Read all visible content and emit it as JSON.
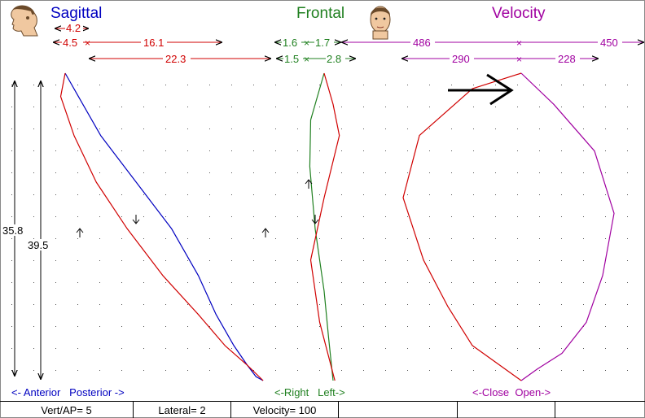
{
  "panels": {
    "sagittal": {
      "title": "Sagittal",
      "color": "#0000c0",
      "direction_label": "<- Anterior   Posterior ->"
    },
    "frontal": {
      "title": "Frontal",
      "color": "#208020",
      "direction_label": "<-Right   Left->"
    },
    "velocity": {
      "title": "Velocity",
      "color": "#a000a0",
      "direction_label": "<-Close  Open->"
    }
  },
  "colors": {
    "red": "#d00000",
    "blue": "#0000c0",
    "green": "#208020",
    "purple": "#a000a0",
    "black": "#000000"
  },
  "measurements": {
    "sagittal_top": "4.2",
    "sagittal_row1_a": "4.5",
    "sagittal_row1_b": "16.1",
    "sagittal_row2": "22.3",
    "frontal_row1_a": "1.6",
    "frontal_row1_b": "1.7",
    "frontal_row2_a": "1.5",
    "frontal_row2_b": "2.8",
    "velocity_row1_a": "486",
    "velocity_row1_b": "450",
    "velocity_row2_a": "290",
    "velocity_row2_b": "228",
    "vertical_a": "35.8",
    "vertical_b": "39.5"
  },
  "status": {
    "vert_ap": "Vert/AP= 5",
    "lateral": "Lateral= 2",
    "velocity": "Velocity= 100",
    "empty1": "",
    "empty2": "",
    "empty3": ""
  },
  "icons": {
    "sagittal": "head-profile-icon",
    "frontal": "face-front-icon",
    "marker": "arrow-right-icon"
  },
  "chart_data": [
    {
      "type": "line",
      "title": "Sagittal",
      "series": [
        {
          "color": "#0000c0",
          "x": [
            0,
            1.5,
            4,
            8,
            12,
            15,
            17,
            19,
            20.5,
            21.5,
            22.3
          ],
          "y": [
            0,
            -3,
            -8,
            -14,
            -20,
            -26,
            -31,
            -35,
            -37.5,
            -39,
            -39.5
          ]
        },
        {
          "color": "#d00000",
          "x": [
            0,
            -0.5,
            1,
            3.5,
            7,
            11,
            15,
            18,
            20.5,
            22.3
          ],
          "y": [
            0,
            -3,
            -8,
            -14,
            -20,
            -26,
            -31,
            -35,
            -37.5,
            -39.5
          ]
        }
      ]
    },
    {
      "type": "line",
      "title": "Frontal",
      "series": [
        {
          "color": "#208020",
          "x": [
            0,
            -1.5,
            -1.6,
            -1.0,
            0,
            0.5,
            1.0
          ],
          "y": [
            0,
            -6,
            -12,
            -20,
            -28,
            -34,
            -39.5
          ]
        },
        {
          "color": "#d00000",
          "x": [
            0,
            1.0,
            1.7,
            0,
            -1.5,
            -0.5,
            1.2
          ],
          "y": [
            0,
            -4,
            -8,
            -16,
            -24,
            -32,
            -39.5
          ]
        }
      ]
    },
    {
      "type": "line",
      "title": "Velocity",
      "series": [
        {
          "color": "#a000a0",
          "x": [
            0,
            80,
            180,
            228,
            200,
            160,
            100,
            40,
            0
          ],
          "y": [
            0,
            -4,
            -10,
            -18,
            -26,
            -32,
            -36,
            -38,
            -39.5
          ]
        },
        {
          "color": "#d00000",
          "x": [
            0,
            -120,
            -250,
            -290,
            -240,
            -180,
            -120,
            -40,
            0
          ],
          "y": [
            0,
            -2,
            -8,
            -16,
            -24,
            -30,
            -35,
            -38,
            -39.5
          ]
        }
      ]
    }
  ]
}
